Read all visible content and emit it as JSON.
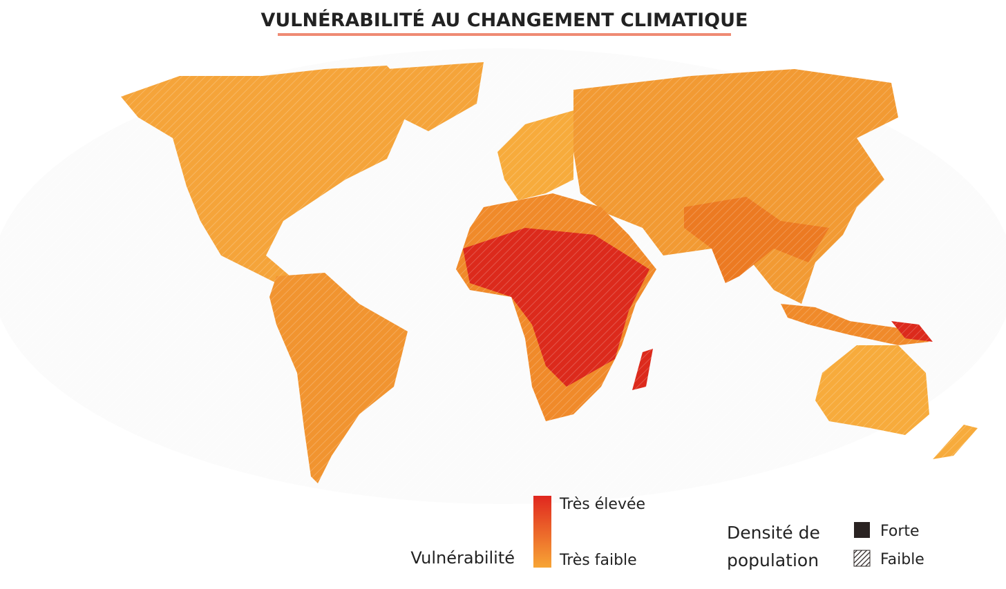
{
  "title": "VULNÉRABILITÉ AU CHANGEMENT CLIMATIQUE",
  "legend": {
    "vulnerability": {
      "label": "Vulnérabilité",
      "high": "Très élevée",
      "low": "Très faible"
    },
    "density": {
      "label_lines": [
        "Densité de",
        "population"
      ],
      "high": "Forte",
      "low": "Faible"
    }
  }
}
